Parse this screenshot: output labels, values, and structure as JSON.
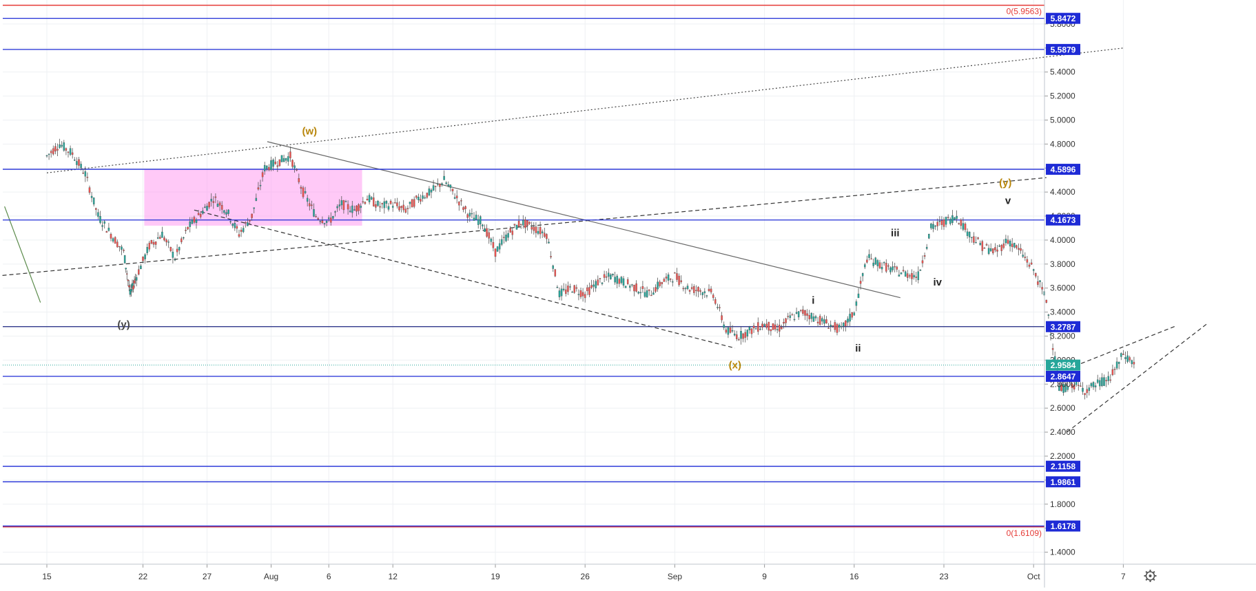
{
  "chart_data": {
    "type": "candlestick",
    "x": {
      "ticks": [
        "15",
        "22",
        "27",
        "Aug",
        "6",
        "12",
        "19",
        "26",
        "Sep",
        "9",
        "16",
        "23",
        "Oct",
        "7"
      ],
      "range_days": [
        0,
        85
      ]
    },
    "y": {
      "range": [
        1.3,
        6.0
      ],
      "ticks": [
        "5.8000",
        "5.6000",
        "5.4000",
        "5.2000",
        "5.0000",
        "4.8000",
        "4.6000",
        "4.4000",
        "4.2000",
        "4.0000",
        "3.8000",
        "3.6000",
        "3.4000",
        "3.2000",
        "3.0000",
        "2.8000",
        "2.6000",
        "2.4000",
        "2.2000",
        "2.0000",
        "1.8000",
        "1.6000",
        "1.4000"
      ]
    },
    "last_price": "2.9584",
    "price_lines": [
      {
        "label": "5.8472",
        "value": 5.8472
      },
      {
        "label": "5.5879",
        "value": 5.5879
      },
      {
        "label": "4.5896",
        "value": 4.5896
      },
      {
        "label": "4.1673",
        "value": 4.1673
      },
      {
        "label": "3.2787",
        "value": 3.2787
      },
      {
        "label": "2.8647",
        "value": 2.8647
      },
      {
        "label": "2.1158",
        "value": 2.1158
      },
      {
        "label": "1.9861",
        "value": 1.9861
      },
      {
        "label": "1.6178",
        "value": 1.6178
      }
    ],
    "fib_lines": [
      {
        "label": "0(5.9563)",
        "value": 5.9563
      },
      {
        "label": "0(1.6109)",
        "value": 1.6109
      }
    ],
    "price_path": [
      [
        0,
        4.7
      ],
      [
        1,
        4.8
      ],
      [
        2,
        4.72
      ],
      [
        3,
        4.55
      ],
      [
        4,
        4.2
      ],
      [
        5,
        4.05
      ],
      [
        6,
        3.9
      ],
      [
        6.5,
        3.55
      ],
      [
        7,
        3.7
      ],
      [
        8,
        3.95
      ],
      [
        9,
        4.05
      ],
      [
        10,
        3.85
      ],
      [
        11,
        4.1
      ],
      [
        12,
        4.22
      ],
      [
        13,
        4.35
      ],
      [
        14,
        4.25
      ],
      [
        15,
        4.05
      ],
      [
        16,
        4.2
      ],
      [
        17,
        4.6
      ],
      [
        18,
        4.65
      ],
      [
        19,
        4.7
      ],
      [
        20,
        4.4
      ],
      [
        21,
        4.2
      ],
      [
        22,
        4.15
      ],
      [
        23,
        4.3
      ],
      [
        24,
        4.25
      ],
      [
        25,
        4.35
      ],
      [
        26,
        4.28
      ],
      [
        27,
        4.3
      ],
      [
        28,
        4.25
      ],
      [
        29,
        4.35
      ],
      [
        30,
        4.4
      ],
      [
        31,
        4.5
      ],
      [
        32,
        4.35
      ],
      [
        33,
        4.2
      ],
      [
        34,
        4.15
      ],
      [
        35,
        3.9
      ],
      [
        36,
        4.05
      ],
      [
        37,
        4.15
      ],
      [
        38,
        4.1
      ],
      [
        39,
        4.05
      ],
      [
        40,
        3.55
      ],
      [
        41,
        3.6
      ],
      [
        42,
        3.55
      ],
      [
        43,
        3.65
      ],
      [
        44,
        3.7
      ],
      [
        45,
        3.65
      ],
      [
        46,
        3.6
      ],
      [
        47,
        3.55
      ],
      [
        48,
        3.65
      ],
      [
        49,
        3.7
      ],
      [
        50,
        3.6
      ],
      [
        51,
        3.58
      ],
      [
        52,
        3.55
      ],
      [
        53,
        3.25
      ],
      [
        54,
        3.2
      ],
      [
        55,
        3.25
      ],
      [
        56,
        3.3
      ],
      [
        57,
        3.25
      ],
      [
        58,
        3.35
      ],
      [
        59,
        3.4
      ],
      [
        60,
        3.35
      ],
      [
        61,
        3.3
      ],
      [
        62,
        3.25
      ],
      [
        63,
        3.4
      ],
      [
        64,
        3.85
      ],
      [
        65,
        3.8
      ],
      [
        66,
        3.75
      ],
      [
        67,
        3.72
      ],
      [
        68,
        3.7
      ],
      [
        69,
        4.1
      ],
      [
        70,
        4.15
      ],
      [
        71,
        4.2
      ],
      [
        72,
        4.05
      ],
      [
        73,
        3.95
      ],
      [
        74,
        3.9
      ],
      [
        75,
        4.0
      ],
      [
        76,
        3.9
      ],
      [
        77,
        3.75
      ],
      [
        78,
        3.5
      ],
      [
        79,
        2.75
      ],
      [
        80,
        2.8
      ],
      [
        81,
        2.75
      ],
      [
        82,
        2.8
      ],
      [
        83,
        2.85
      ],
      [
        84,
        3.05
      ],
      [
        85,
        2.96
      ]
    ],
    "annotations": [
      {
        "text": "(w)",
        "day": 20.5,
        "y": 4.88,
        "color": "#b8860b"
      },
      {
        "text": "(y)",
        "day": 6.0,
        "y": 3.27,
        "color": "#444444"
      },
      {
        "text": "(x)",
        "day": 53.7,
        "y": 2.93,
        "color": "#b8860b"
      },
      {
        "text": "(y)",
        "day": 74.8,
        "y": 4.45,
        "color": "#b8860b"
      },
      {
        "text": "i",
        "day": 59.8,
        "y": 3.47,
        "color": "#222222"
      },
      {
        "text": "ii",
        "day": 63.3,
        "y": 3.07,
        "color": "#222222"
      },
      {
        "text": "iii",
        "day": 66.2,
        "y": 4.03,
        "color": "#222222"
      },
      {
        "text": "iv",
        "day": 69.5,
        "y": 3.62,
        "color": "#222222"
      },
      {
        "text": "v",
        "day": 75.0,
        "y": 4.3,
        "color": "#222222"
      }
    ]
  }
}
